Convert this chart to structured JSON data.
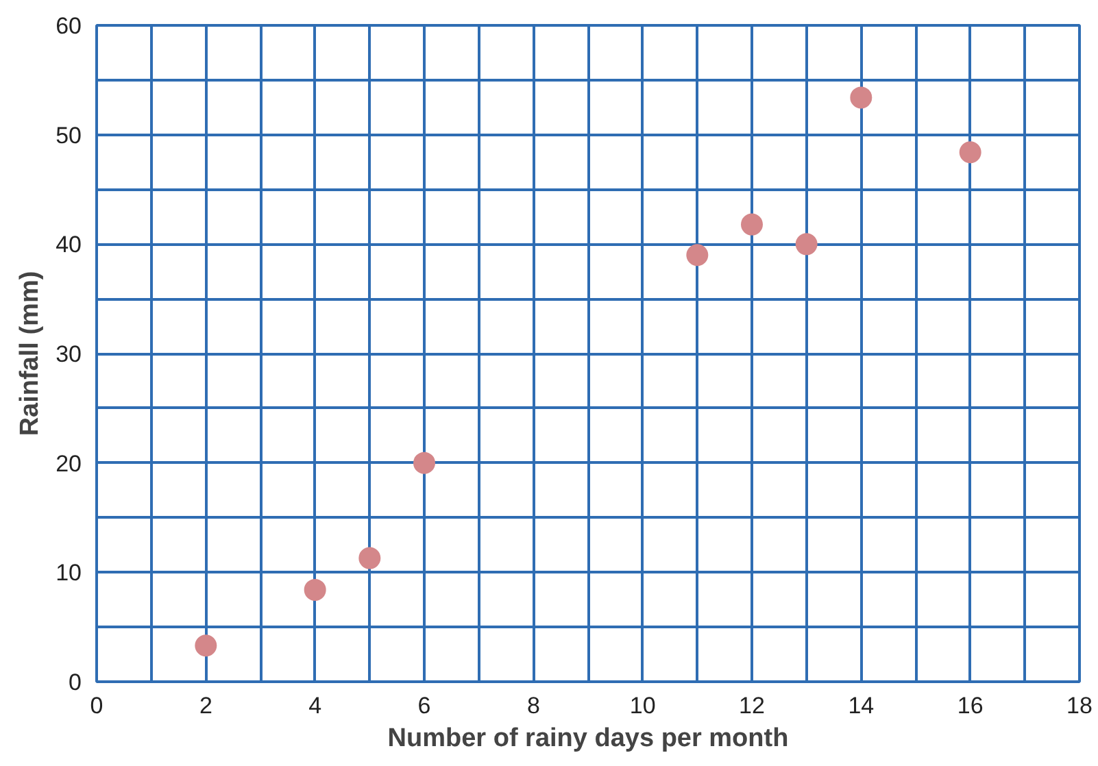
{
  "chart_data": {
    "type": "scatter",
    "xlabel": "Number of rainy days per month",
    "ylabel": "Rainfall (mm)",
    "x": [
      2,
      4,
      5,
      6,
      11,
      12,
      13,
      14,
      16
    ],
    "values": [
      3.3,
      8.4,
      11.3,
      20,
      39,
      41.8,
      40,
      53.4,
      48.4
    ],
    "color": "#d4878a",
    "marker": "circle",
    "xlim": [
      0,
      18
    ],
    "ylim": [
      0,
      60
    ],
    "xticks": [
      0,
      {
        "value": 1,
        "label": null
      },
      2,
      {
        "value": 3,
        "label": null
      },
      4,
      {
        "value": 5,
        "label": null
      },
      6,
      {
        "value": 7,
        "label": null
      },
      8,
      {
        "value": 9,
        "label": null
      },
      10,
      {
        "value": 11,
        "label": null
      },
      12,
      {
        "value": 13,
        "label": null
      },
      14,
      {
        "value": 15,
        "label": null
      },
      16,
      {
        "value": 17,
        "label": null
      },
      18
    ],
    "yticks": [
      0,
      {
        "value": 5,
        "label": null
      },
      10,
      {
        "value": 15,
        "label": null
      },
      20,
      {
        "value": 25,
        "label": null
      },
      30,
      {
        "value": 35,
        "label": null
      },
      40,
      {
        "value": 45,
        "label": null
      },
      50,
      {
        "value": 55,
        "label": null
      },
      60
    ],
    "grid": true
  }
}
